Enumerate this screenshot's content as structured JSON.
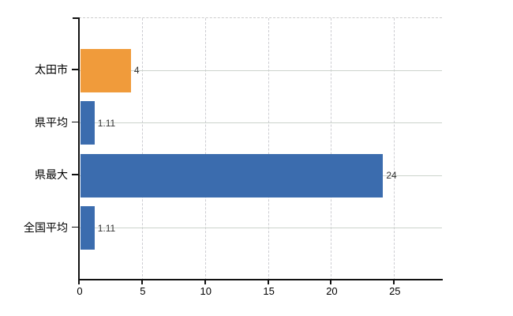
{
  "chart_data": {
    "type": "bar",
    "orientation": "horizontal",
    "title": "",
    "categories": [
      "太田市",
      "県平均",
      "県最大",
      "全国平均"
    ],
    "series": [
      {
        "name": "values",
        "values": [
          4,
          1.11,
          24,
          1.11
        ]
      }
    ],
    "value_labels": [
      "4",
      "1.11",
      "24",
      "1.11"
    ],
    "bar_colors": [
      "#f09b3b",
      "#3b6cae",
      "#3b6cae",
      "#3b6cae"
    ],
    "x_ticks": [
      0,
      5,
      10,
      15,
      20,
      25
    ],
    "x_tick_labels": [
      "0",
      "5",
      "10",
      "15",
      "20",
      "25"
    ],
    "xlim": [
      0,
      28.8
    ],
    "grid": true,
    "legend_position": "none",
    "colors": {
      "bar_city": "#f09b3b",
      "bar_reference": "#3b6cae",
      "axis": "#111111",
      "vertical_gridline": "#cdcdd2",
      "horizontal_gridline": "#ccd3cc",
      "value_label": "#333333",
      "tick_label": "#000000",
      "background": "#ffffff"
    }
  }
}
